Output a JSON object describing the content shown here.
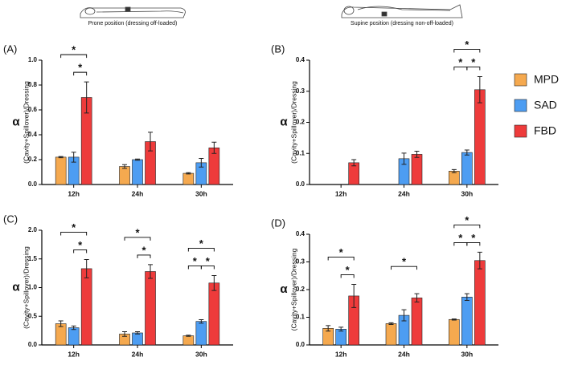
{
  "captions": [
    "Prone position (dressing off-loaded)",
    "Supine position (dressing non-off-loaded)"
  ],
  "chart_data": [
    {
      "type": "bar",
      "panel": "(A)",
      "y_label": "(Cavity+Spillover)/Dressing",
      "y_symbol": "α",
      "categories": [
        "12h",
        "24h",
        "30h"
      ],
      "series": [
        {
          "name": "MPD",
          "color": "#f5a94f",
          "values": [
            0.22,
            0.145,
            0.09
          ],
          "errors": [
            0.005,
            0.015,
            0.005
          ]
        },
        {
          "name": "SAD",
          "color": "#4d9df2",
          "values": [
            0.22,
            0.2,
            0.175
          ],
          "errors": [
            0.04,
            0.005,
            0.035
          ]
        },
        {
          "name": "FBD",
          "color": "#ee3b3b",
          "values": [
            0.7,
            0.345,
            0.295
          ],
          "errors": [
            0.125,
            0.075,
            0.045
          ]
        }
      ],
      "ylim": [
        0,
        1.0
      ],
      "yticks": [
        {
          "value": 0,
          "label": "0.0"
        },
        0.2,
        0.4,
        0.6,
        0.8,
        {
          "value": 1.0,
          "label": "1.0"
        }
      ],
      "significance": [
        {
          "category": "12h",
          "pair": [
            "SAD",
            "FBD"
          ],
          "label": "*"
        },
        {
          "category": "12h",
          "pair": [
            "MPD",
            "FBD"
          ],
          "label": "*"
        }
      ]
    },
    {
      "type": "bar",
      "panel": "(B)",
      "y_label": "(Cavity+Spillover)/Dressing",
      "y_symbol": "α",
      "categories": [
        "12h",
        "24h",
        "30h"
      ],
      "series": [
        {
          "name": "MPD",
          "color": "#f5a94f",
          "values": [
            null,
            null,
            0.043
          ],
          "errors": [
            null,
            null,
            0.005
          ]
        },
        {
          "name": "SAD",
          "color": "#4d9df2",
          "values": [
            null,
            0.083,
            0.103
          ],
          "errors": [
            null,
            0.018,
            0.008
          ]
        },
        {
          "name": "FBD",
          "color": "#ee3b3b",
          "values": [
            0.07,
            0.097,
            0.305
          ],
          "errors": [
            0.01,
            0.01,
            0.042
          ]
        }
      ],
      "ylim": [
        0,
        0.4
      ],
      "yticks": [
        {
          "value": 0,
          "label": "0.0"
        },
        0.1,
        0.2,
        0.3,
        0.4
      ],
      "significance": [
        {
          "category": "30h",
          "pair": [
            "MPD",
            "SAD"
          ],
          "label": "*"
        },
        {
          "category": "30h",
          "pair": [
            "SAD",
            "FBD"
          ],
          "label": "*"
        },
        {
          "category": "30h",
          "pair": [
            "MPD",
            "FBD"
          ],
          "label": "*"
        }
      ]
    },
    {
      "type": "bar",
      "panel": "(C)",
      "y_label": "(Cavity+Spillover)/Dressing",
      "y_symbol": "α",
      "categories": [
        "12h",
        "24h",
        "30h"
      ],
      "series": [
        {
          "name": "MPD",
          "color": "#f5a94f",
          "values": [
            0.37,
            0.19,
            0.16
          ],
          "errors": [
            0.05,
            0.04,
            0.01
          ]
        },
        {
          "name": "SAD",
          "color": "#4d9df2",
          "values": [
            0.3,
            0.21,
            0.41
          ],
          "errors": [
            0.03,
            0.02,
            0.03
          ]
        },
        {
          "name": "FBD",
          "color": "#ee3b3b",
          "values": [
            1.33,
            1.28,
            1.08
          ],
          "errors": [
            0.16,
            0.12,
            0.13
          ]
        }
      ],
      "ylim": [
        0,
        2.0
      ],
      "yticks": [
        {
          "value": 0,
          "label": "0.0"
        },
        0.5,
        {
          "value": 1.0,
          "label": "1.0"
        },
        1.5,
        {
          "value": 2.0,
          "label": "2.0"
        }
      ],
      "significance": [
        {
          "category": "12h",
          "pair": [
            "SAD",
            "FBD"
          ],
          "label": "*"
        },
        {
          "category": "12h",
          "pair": [
            "MPD",
            "FBD"
          ],
          "label": "*"
        },
        {
          "category": "24h",
          "pair": [
            "SAD",
            "FBD"
          ],
          "label": "*"
        },
        {
          "category": "24h",
          "pair": [
            "MPD",
            "FBD"
          ],
          "label": "*"
        },
        {
          "category": "30h",
          "pair": [
            "MPD",
            "SAD"
          ],
          "label": "*"
        },
        {
          "category": "30h",
          "pair": [
            "SAD",
            "FBD"
          ],
          "label": "*"
        },
        {
          "category": "30h",
          "pair": [
            "MPD",
            "FBD"
          ],
          "label": "*"
        }
      ]
    },
    {
      "type": "bar",
      "panel": "(D)",
      "y_label": "(Cavity+Spillover)/Dressing",
      "y_symbol": "α",
      "categories": [
        "12h",
        "24h",
        "30h"
      ],
      "series": [
        {
          "name": "MPD",
          "color": "#f5a94f",
          "values": [
            0.06,
            0.077,
            0.092
          ],
          "errors": [
            0.01,
            0.003,
            0.002
          ]
        },
        {
          "name": "SAD",
          "color": "#4d9df2",
          "values": [
            0.057,
            0.107,
            0.173
          ],
          "errors": [
            0.007,
            0.02,
            0.012
          ]
        },
        {
          "name": "FBD",
          "color": "#ee3b3b",
          "values": [
            0.177,
            0.17,
            0.305
          ],
          "errors": [
            0.042,
            0.015,
            0.03
          ]
        }
      ],
      "ylim": [
        0,
        0.4
      ],
      "yticks": [
        {
          "value": 0,
          "label": "0.0"
        },
        0.1,
        0.2,
        0.3,
        0.4
      ],
      "significance": [
        {
          "category": "12h",
          "pair": [
            "SAD",
            "FBD"
          ],
          "label": "*"
        },
        {
          "category": "12h",
          "pair": [
            "MPD",
            "FBD"
          ],
          "label": "*"
        },
        {
          "category": "24h",
          "pair": [
            "MPD",
            "FBD"
          ],
          "label": "*"
        },
        {
          "category": "30h",
          "pair": [
            "MPD",
            "SAD"
          ],
          "label": "*"
        },
        {
          "category": "30h",
          "pair": [
            "SAD",
            "FBD"
          ],
          "label": "*"
        },
        {
          "category": "30h",
          "pair": [
            "MPD",
            "FBD"
          ],
          "label": "*"
        }
      ]
    }
  ]
}
